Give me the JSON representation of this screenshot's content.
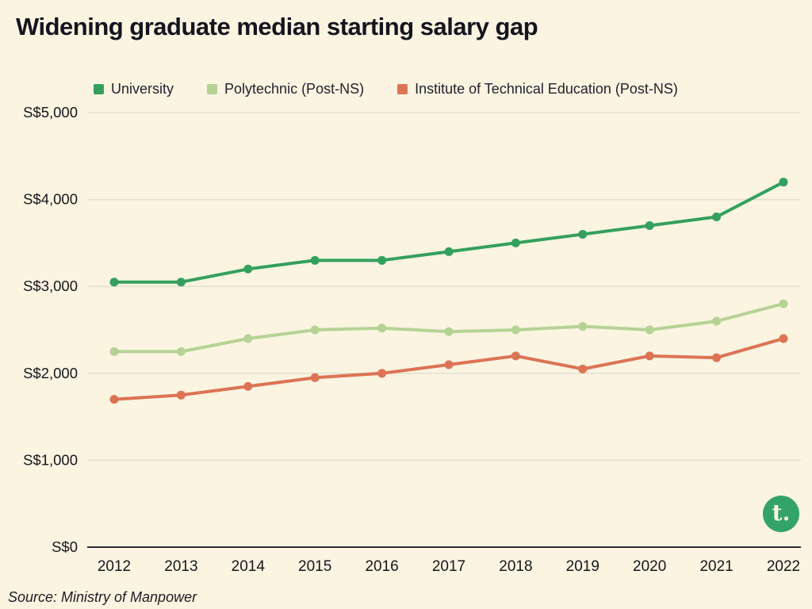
{
  "header": {
    "title": "Widening graduate median starting salary gap"
  },
  "footer": {
    "source": "Source: Ministry of Manpower"
  },
  "logo": {
    "text": "t.",
    "background": "#33a36a"
  },
  "colors": {
    "background": "#faf4e1",
    "university": "#34a05e",
    "polytechnic": "#b6d395",
    "ite": "#dd7355",
    "axis_line": "#2b2b33",
    "grid_line": "rgba(40,40,40,0.10)",
    "tick_text": "#16161e"
  },
  "chart_data": {
    "type": "line",
    "title": "Widening graduate median starting salary gap",
    "x": [
      2012,
      2013,
      2014,
      2015,
      2016,
      2017,
      2018,
      2019,
      2020,
      2021,
      2022
    ],
    "series": [
      {
        "name": "University",
        "color": "#34a05e",
        "values": [
          3050,
          3050,
          3200,
          3300,
          3300,
          3400,
          3500,
          3600,
          3700,
          3800,
          4200
        ]
      },
      {
        "name": "Polytechnic (Post-NS)",
        "color": "#b6d395",
        "values": [
          2250,
          2250,
          2400,
          2500,
          2520,
          2480,
          2500,
          2540,
          2500,
          2600,
          2800
        ]
      },
      {
        "name": "Institute of Technical Education (Post-NS)",
        "color": "#dd7355",
        "values": [
          1700,
          1750,
          1850,
          1950,
          2000,
          2100,
          2200,
          2050,
          2200,
          2180,
          2400
        ]
      }
    ],
    "ylim": [
      0,
      5000
    ],
    "yticks": [
      {
        "value": 0,
        "label": "S$0"
      },
      {
        "value": 1000,
        "label": "S$1,000"
      },
      {
        "value": 2000,
        "label": "S$2,000"
      },
      {
        "value": 3000,
        "label": "S$3,000"
      },
      {
        "value": 4000,
        "label": "S$4,000"
      },
      {
        "value": 5000,
        "label": "S$5,000"
      }
    ],
    "grid": "horizontal",
    "legend_position": "top",
    "source": "Source: Ministry of Manpower"
  }
}
